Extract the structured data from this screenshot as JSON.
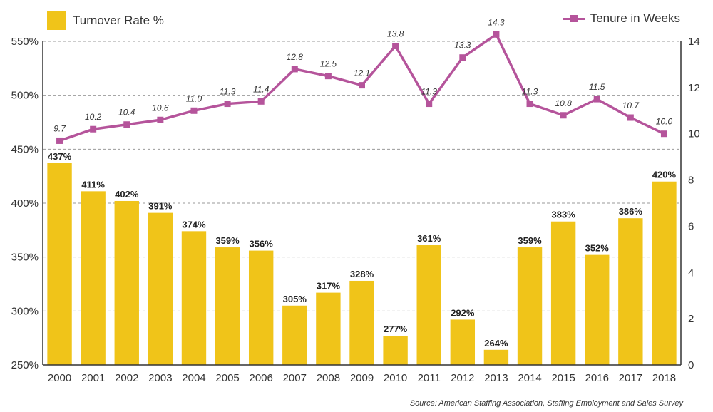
{
  "chart_data": {
    "type": "bar+line",
    "categories": [
      "2000",
      "2001",
      "2002",
      "2003",
      "2004",
      "2005",
      "2006",
      "2007",
      "2008",
      "2009",
      "2010",
      "2011",
      "2012",
      "2013",
      "2014",
      "2015",
      "2016",
      "2017",
      "2018"
    ],
    "series": [
      {
        "name": "Turnover Rate %",
        "type": "bar",
        "axis": "left",
        "color": "#f0c419",
        "values": [
          437,
          411,
          402,
          391,
          374,
          359,
          356,
          305,
          317,
          328,
          277,
          361,
          292,
          264,
          359,
          383,
          352,
          386,
          420
        ],
        "labels": [
          "437%",
          "411%",
          "402%",
          "391%",
          "374%",
          "359%",
          "356%",
          "305%",
          "317%",
          "328%",
          "277%",
          "361%",
          "292%",
          "264%",
          "359%",
          "383%",
          "352%",
          "386%",
          "420%"
        ]
      },
      {
        "name": "Tenure in Weeks",
        "type": "line",
        "axis": "right",
        "color": "#b5549b",
        "values": [
          9.7,
          10.2,
          10.4,
          10.6,
          11.0,
          11.3,
          11.4,
          12.8,
          12.5,
          12.1,
          13.8,
          11.3,
          13.3,
          14.3,
          11.3,
          10.8,
          11.5,
          10.7,
          10.0
        ],
        "labels": [
          "9.7",
          "10.2",
          "10.4",
          "10.6",
          "11.0",
          "11.3",
          "11.4",
          "12.8",
          "12.5",
          "12.1",
          "13.8",
          "11.3",
          "13.3",
          "14.3",
          "11.3",
          "10.8",
          "11.5",
          "10.7",
          "10.0"
        ]
      }
    ],
    "left_axis": {
      "range": [
        250,
        550
      ],
      "ticks": [
        "250%",
        "300%",
        "350%",
        "400%",
        "450%",
        "500%",
        "550%"
      ]
    },
    "right_axis": {
      "range": [
        0,
        14
      ],
      "ticks": [
        "0",
        "2",
        "4",
        "6",
        "8",
        "10",
        "12",
        "14"
      ]
    },
    "grid": true,
    "legend": {
      "bar_label": "Turnover Rate %",
      "line_label": "Tenure in Weeks",
      "placement": "top"
    },
    "source": "Source: American Staffing Association, Staffing Employment and Sales Survey"
  }
}
